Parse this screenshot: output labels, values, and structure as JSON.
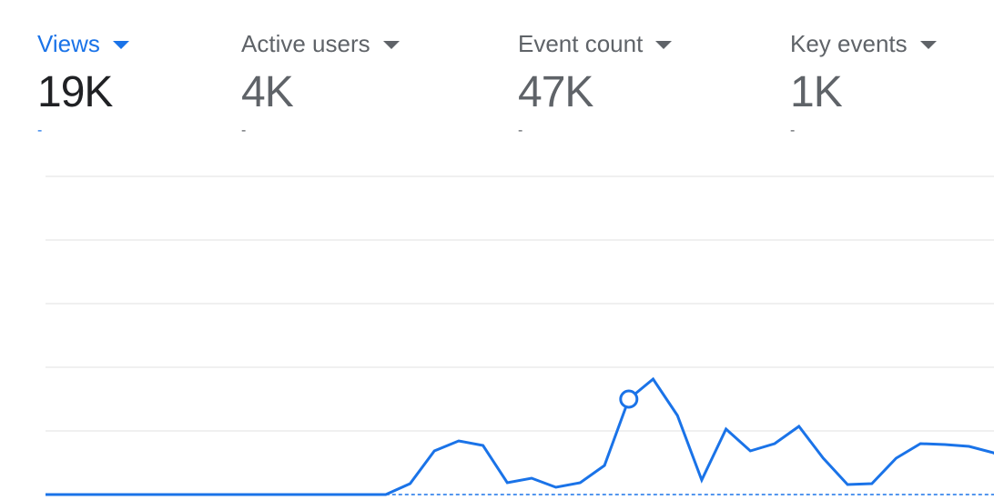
{
  "metrics": [
    {
      "label": "Views",
      "value": "19K",
      "change": "-",
      "selected": true
    },
    {
      "label": "Active users",
      "value": "4K",
      "change": "-",
      "selected": false
    },
    {
      "label": "Event count",
      "value": "47K",
      "change": "-",
      "selected": false
    },
    {
      "label": "Key events",
      "value": "1K",
      "change": "-",
      "selected": false
    }
  ],
  "colors": {
    "accent": "#1a73e8",
    "grid": "#e0e0e0",
    "text_muted": "#5f6368",
    "text_primary": "#202124"
  },
  "icons": {
    "dropdown": "caret-down-icon"
  },
  "chart_data": {
    "type": "line",
    "title": "",
    "xlabel": "",
    "ylabel": "",
    "grid": true,
    "ylim": [
      0,
      3500
    ],
    "x": [
      1,
      2,
      3,
      4,
      5,
      6,
      7,
      8,
      9,
      10,
      11,
      12,
      13,
      14,
      15,
      16,
      17,
      18,
      19,
      20,
      21,
      22,
      23,
      24,
      25,
      26,
      27,
      28,
      29,
      30,
      31,
      32,
      33,
      34,
      35,
      36,
      37,
      38,
      39,
      40,
      41,
      42
    ],
    "series": [
      {
        "name": "",
        "style": "solid",
        "values": [
          0,
          0,
          0,
          0,
          0,
          0,
          0,
          0,
          0,
          0,
          0,
          0,
          0,
          0,
          0,
          120,
          480,
          590,
          540,
          130,
          180,
          80,
          130,
          320,
          1050,
          1270,
          870,
          160,
          720,
          480,
          560,
          750,
          400,
          110,
          120,
          400,
          560,
          550,
          530,
          460,
          300,
          180
        ],
        "highlight_index": 24
      },
      {
        "name": "",
        "style": "dashed",
        "values": [
          0,
          0,
          0,
          0,
          0,
          0,
          0,
          0,
          0,
          0,
          0,
          0,
          0,
          0,
          0,
          0,
          0,
          0,
          0,
          0,
          0,
          0,
          0,
          0,
          0,
          0,
          0,
          0,
          0,
          0,
          0,
          0,
          0,
          0,
          0,
          0,
          0,
          0,
          0,
          0,
          0,
          0
        ]
      }
    ]
  }
}
